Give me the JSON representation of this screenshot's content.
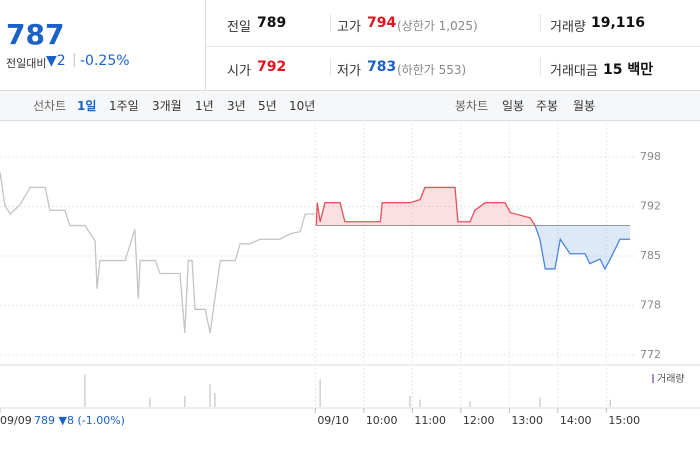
{
  "header": {
    "price": "787",
    "change_label": "전일대비",
    "change": "▼2",
    "change_pct": "-0.25%"
  },
  "stats": [
    {
      "label": "전일",
      "value": "789"
    },
    {
      "label": "고가",
      "value": "794",
      "note": "(상한가 1,025)"
    },
    {
      "label": "거래량",
      "value": "19,116"
    },
    {
      "label": "시가",
      "value": "792"
    },
    {
      "label": "저가",
      "value": "783",
      "note": "(하한가 553)"
    },
    {
      "label": "거래대금",
      "value": "15 백만"
    }
  ],
  "tabs": {
    "line_label": "선차트",
    "line_periods": [
      "1일",
      "1주일",
      "3개월",
      "1년",
      "3년",
      "5년",
      "10년"
    ],
    "candle_label": "봉차트",
    "candle_periods": [
      "일봉",
      "주봉",
      "월봉"
    ]
  },
  "chart_data": {
    "type": "line",
    "legend": "거래량",
    "annotation": "789 ▼8 (-1.00%)",
    "baseline": 789,
    "xlim": [
      0,
      14.43
    ],
    "ylim": [
      770.69,
      802.2
    ],
    "xticks": [
      {
        "value": 0,
        "label": "09/09"
      },
      {
        "value": 6.5,
        "label": "09/10"
      },
      {
        "value": 7.5,
        "label": "10:00"
      },
      {
        "value": 8.5,
        "label": "11:00"
      },
      {
        "value": 9.5,
        "label": "12:00"
      },
      {
        "value": 10.5,
        "label": "13:00"
      },
      {
        "value": 11.5,
        "label": "14:00"
      },
      {
        "value": 12.5,
        "label": "15:00"
      }
    ],
    "yticks": [
      772,
      {
        "value": 778.5,
        "label": "778"
      },
      785,
      {
        "value": 791.5,
        "label": "792"
      },
      798
    ],
    "grid": true,
    "series": [
      {
        "color": "#c4c4c4",
        "x": [
          0,
          0.1,
          0.21,
          0.41,
          0.62,
          0.93,
          1.03,
          1.34,
          1.44,
          1.75,
          1.96,
          2,
          2.06,
          2.27,
          2.58,
          2.78,
          2.85,
          2.89,
          3.2,
          3.3,
          3.71,
          3.81,
          3.88,
          3.96,
          4.02,
          4.23,
          4.33,
          4.43,
          4.54,
          4.85,
          4.95,
          5.15,
          5.36,
          5.77,
          5.98,
          6.19,
          6.29,
          6.49
        ],
        "values": [
          796,
          791.7,
          790.5,
          791.7,
          794,
          794,
          791,
          791,
          789,
          789,
          787,
          780.7,
          784.4,
          784.4,
          784.4,
          788.5,
          779.4,
          784.4,
          784.4,
          782.7,
          782.7,
          774.9,
          784.4,
          784.4,
          778,
          778,
          774.9,
          779.4,
          784.4,
          784.4,
          786.6,
          786.6,
          787.2,
          787.2,
          787.9,
          788.2,
          790.5,
          790.5
        ]
      },
      {
        "color": "#e8505b",
        "down_color": "#4a86d8",
        "x": [
          6.52,
          6.54,
          6.6,
          6.7,
          7.01,
          7.11,
          7.84,
          7.88,
          8.45,
          8.66,
          8.76,
          9.38,
          9.44,
          9.69,
          9.79,
          10,
          10.41,
          10.52,
          10.93,
          11.03,
          11.13,
          11.24,
          11.44,
          11.55,
          11.75,
          12.06,
          12.16,
          12.37,
          12.47,
          12.58,
          12.78,
          12.99
        ],
        "values": [
          789,
          792,
          789.5,
          792,
          792,
          789.5,
          789.5,
          792,
          792,
          792.4,
          794,
          794,
          789.5,
          789.5,
          791,
          792,
          792,
          790.7,
          790,
          789,
          787.2,
          783.3,
          783.3,
          787.2,
          785.3,
          785.3,
          784,
          784.6,
          783.3,
          784.6,
          787.2,
          787.2
        ]
      }
    ],
    "volume_color": "#d0d0d0",
    "volume_ylim": [
      0,
      40
    ],
    "volume_x": [
      1.75,
      3.09,
      3.81,
      4.33,
      4.43,
      6.6,
      8.45,
      8.66,
      9.69,
      11.13,
      12.58
    ],
    "volume": [
      35,
      10,
      12,
      25,
      15,
      30,
      12,
      8,
      6,
      10,
      8
    ]
  }
}
